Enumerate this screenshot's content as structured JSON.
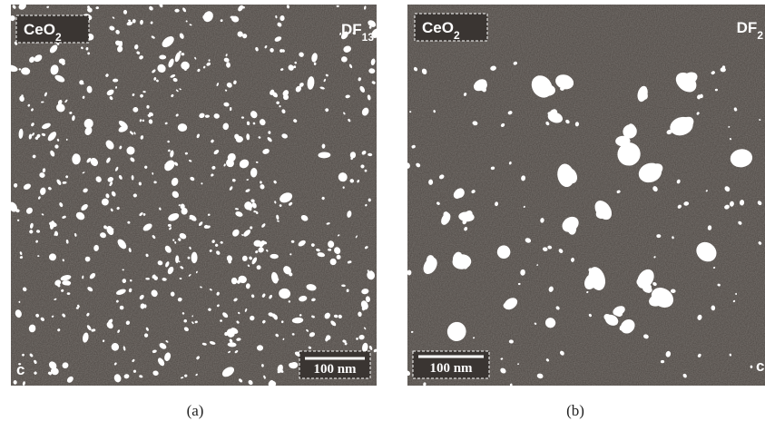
{
  "panels": [
    {
      "material": "CeO",
      "material_sub": "2",
      "mode": "DF",
      "mode_sub": "13",
      "scale_bar": "100 nm",
      "corner": "c",
      "caption": "(a)"
    },
    {
      "material": "CeO",
      "material_sub": "2",
      "mode": "DF",
      "mode_sub": "2",
      "scale_bar": "100 nm",
      "corner": "c",
      "caption": "(b)"
    }
  ]
}
